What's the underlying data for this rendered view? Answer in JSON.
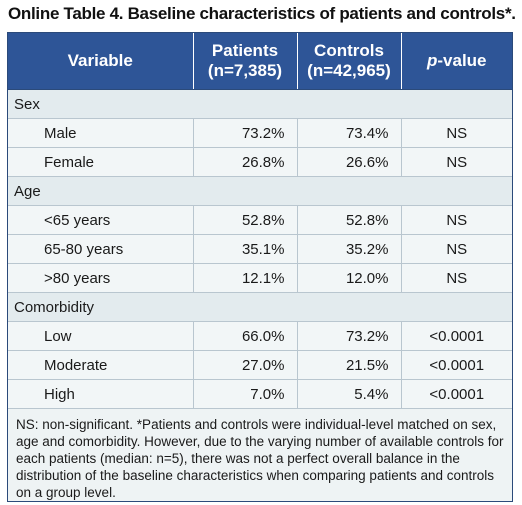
{
  "title": "Online Table 4. Baseline characteristics of patients and controls*.",
  "header": {
    "variable": "Variable",
    "patients_line1": "Patients",
    "patients_line2": "(n=7,385)",
    "controls_line1": "Controls",
    "controls_line2": "(n=42,965)",
    "pvalue_italic": "p",
    "pvalue_rest": "-value"
  },
  "sections": [
    {
      "label": "Sex",
      "rows": [
        {
          "variable": "Male",
          "patients": "73.2%",
          "controls": "73.4%",
          "pvalue": "NS"
        },
        {
          "variable": "Female",
          "patients": "26.8%",
          "controls": "26.6%",
          "pvalue": "NS"
        }
      ]
    },
    {
      "label": "Age",
      "rows": [
        {
          "variable": "<65 years",
          "patients": "52.8%",
          "controls": "52.8%",
          "pvalue": "NS"
        },
        {
          "variable": "65-80 years",
          "patients": "35.1%",
          "controls": "35.2%",
          "pvalue": "NS"
        },
        {
          "variable": ">80 years",
          "patients": "12.1%",
          "controls": "12.0%",
          "pvalue": "NS"
        }
      ]
    },
    {
      "label": "Comorbidity",
      "rows": [
        {
          "variable": "Low",
          "patients": "66.0%",
          "controls": "73.2%",
          "pvalue": "<0.0001"
        },
        {
          "variable": "Moderate",
          "patients": "27.0%",
          "controls": "21.5%",
          "pvalue": "<0.0001"
        },
        {
          "variable": "High",
          "patients": "7.0%",
          "controls": "5.4%",
          "pvalue": "<0.0001"
        }
      ]
    }
  ],
  "footnote": "NS: non-significant. *Patients and controls were individual-level matched on sex, age and comorbidity. However, due to the varying number of available controls for each patients (median: n=5), there was not a perfect overall balance in the distribution of the baseline characteristics when comparing patients and controls on a group level.",
  "colors": {
    "header_bg": "#2e5597",
    "header_text": "#ffffff",
    "row_bg": "#f2f6f7",
    "section_bg": "#e3ebee"
  }
}
